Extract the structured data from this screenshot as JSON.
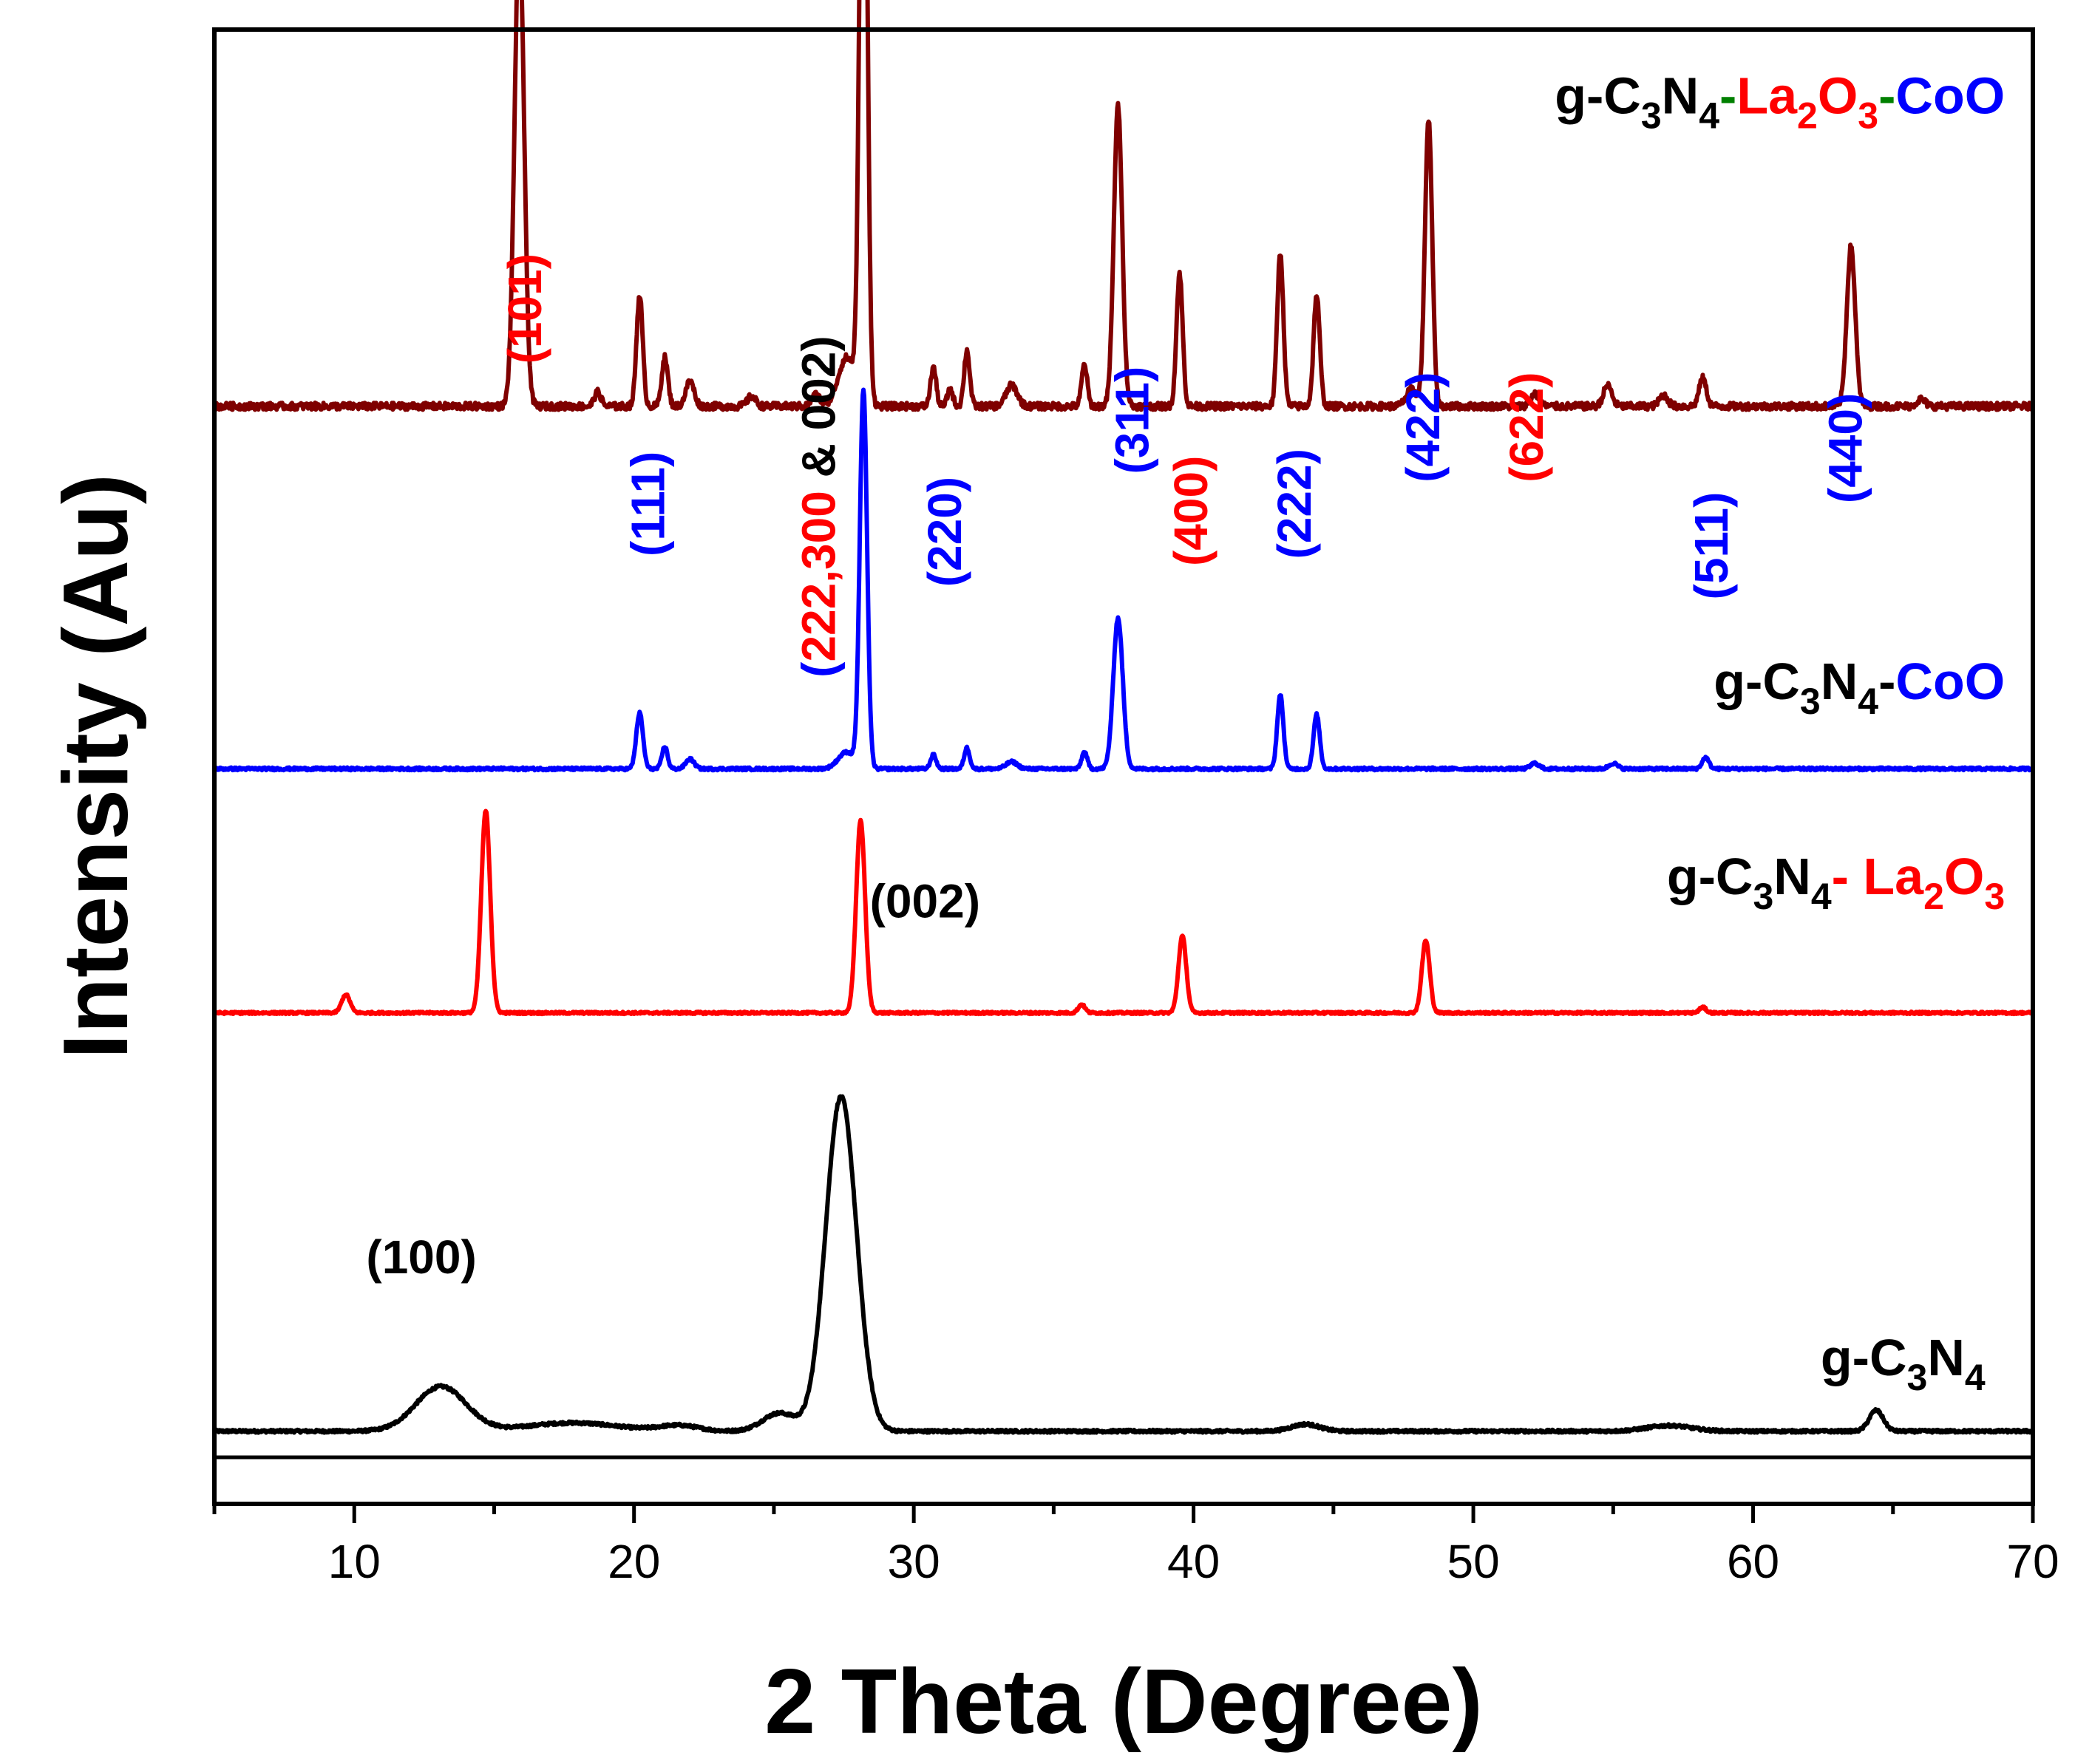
{
  "chart_data": {
    "type": "line",
    "title": "",
    "xlabel": "2 Theta (Degree)",
    "ylabel": "Intensity (Au)",
    "xlim": [
      5,
      70
    ],
    "ylim": [
      0,
      100
    ],
    "x_ticks": [
      10,
      20,
      30,
      40,
      50,
      60,
      70
    ],
    "x_tick_labels": [
      "10",
      "20",
      "30",
      "40",
      "50",
      "60",
      "70"
    ],
    "colors": {
      "gcn": "#000000",
      "la": "#ff0000",
      "co": "#0000ff",
      "ternary": "#7f0000",
      "green": "#008000"
    },
    "series": [
      {
        "key": "gcn",
        "name": "g-C3N4",
        "color": "#000000",
        "baseline": 1.5,
        "width": 0.1,
        "features": [
          {
            "x": 13.1,
            "h": 3.2,
            "w": 0.9
          },
          {
            "x": 17.8,
            "h": 0.6,
            "w": 1.6
          },
          {
            "x": 21.6,
            "h": 0.4,
            "w": 0.7
          },
          {
            "x": 25.2,
            "h": 1.3,
            "w": 0.6
          },
          {
            "x": 27.4,
            "h": 24.0,
            "w": 0.55
          },
          {
            "x": 44.0,
            "h": 0.5,
            "w": 0.5
          },
          {
            "x": 57.0,
            "h": 0.4,
            "w": 0.8
          },
          {
            "x": 64.4,
            "h": 1.5,
            "w": 0.25
          }
        ]
      },
      {
        "key": "la",
        "name": "g-C3N4- La2O3",
        "color": "#ff0000",
        "baseline": 31.5,
        "width": 0.08,
        "features": [
          {
            "x": 9.7,
            "h": 1.3,
            "w": 0.15
          },
          {
            "x": 14.7,
            "h": 14.5,
            "w": 0.16
          },
          {
            "x": 28.1,
            "h": 13.8,
            "w": 0.16
          },
          {
            "x": 36.0,
            "h": 0.6,
            "w": 0.12
          },
          {
            "x": 39.6,
            "h": 5.5,
            "w": 0.14
          },
          {
            "x": 48.3,
            "h": 5.2,
            "w": 0.14
          },
          {
            "x": 58.2,
            "h": 0.4,
            "w": 0.12
          }
        ]
      },
      {
        "key": "co",
        "name": "g-C3N4-CoO",
        "color": "#0000ff",
        "baseline": 49.0,
        "width": 0.1,
        "features": [
          {
            "x": 20.2,
            "h": 4.0,
            "w": 0.12
          },
          {
            "x": 21.1,
            "h": 1.6,
            "w": 0.1
          },
          {
            "x": 22.0,
            "h": 0.7,
            "w": 0.15
          },
          {
            "x": 27.6,
            "h": 1.2,
            "w": 0.3
          },
          {
            "x": 28.2,
            "h": 27.0,
            "w": 0.13
          },
          {
            "x": 30.7,
            "h": 1.0,
            "w": 0.1
          },
          {
            "x": 31.9,
            "h": 1.5,
            "w": 0.1
          },
          {
            "x": 33.5,
            "h": 0.5,
            "w": 0.2
          },
          {
            "x": 36.1,
            "h": 1.2,
            "w": 0.1
          },
          {
            "x": 37.3,
            "h": 10.8,
            "w": 0.17
          },
          {
            "x": 43.1,
            "h": 5.3,
            "w": 0.11
          },
          {
            "x": 44.4,
            "h": 3.9,
            "w": 0.11
          },
          {
            "x": 52.2,
            "h": 0.4,
            "w": 0.15
          },
          {
            "x": 55.0,
            "h": 0.4,
            "w": 0.15
          },
          {
            "x": 58.3,
            "h": 0.8,
            "w": 0.12
          }
        ]
      },
      {
        "key": "ternary",
        "name": "g-C3N4-La2O3-CoO",
        "color": "#7f0000",
        "baseline": 75.0,
        "width": 0.25,
        "features": [
          {
            "x": 15.9,
            "h": 34.0,
            "w": 0.17
          },
          {
            "x": 18.7,
            "h": 1.0,
            "w": 0.12
          },
          {
            "x": 20.2,
            "h": 8.0,
            "w": 0.11
          },
          {
            "x": 21.1,
            "h": 3.5,
            "w": 0.11
          },
          {
            "x": 22.0,
            "h": 1.8,
            "w": 0.15
          },
          {
            "x": 24.2,
            "h": 0.7,
            "w": 0.15
          },
          {
            "x": 26.5,
            "h": 0.8,
            "w": 0.15
          },
          {
            "x": 27.6,
            "h": 3.5,
            "w": 0.3
          },
          {
            "x": 28.2,
            "h": 55.0,
            "w": 0.13
          },
          {
            "x": 30.7,
            "h": 2.8,
            "w": 0.1
          },
          {
            "x": 31.3,
            "h": 1.2,
            "w": 0.1
          },
          {
            "x": 31.9,
            "h": 4.0,
            "w": 0.1
          },
          {
            "x": 33.5,
            "h": 1.5,
            "w": 0.2
          },
          {
            "x": 36.1,
            "h": 3.0,
            "w": 0.1
          },
          {
            "x": 37.3,
            "h": 21.5,
            "w": 0.15
          },
          {
            "x": 39.5,
            "h": 9.5,
            "w": 0.11
          },
          {
            "x": 43.1,
            "h": 11.0,
            "w": 0.11
          },
          {
            "x": 44.4,
            "h": 8.0,
            "w": 0.11
          },
          {
            "x": 47.8,
            "h": 1.2,
            "w": 0.2
          },
          {
            "x": 48.4,
            "h": 20.5,
            "w": 0.13
          },
          {
            "x": 52.2,
            "h": 0.9,
            "w": 0.15
          },
          {
            "x": 54.8,
            "h": 1.5,
            "w": 0.15
          },
          {
            "x": 56.8,
            "h": 0.8,
            "w": 0.15
          },
          {
            "x": 58.2,
            "h": 2.0,
            "w": 0.13
          },
          {
            "x": 63.5,
            "h": 11.5,
            "w": 0.15
          },
          {
            "x": 66.0,
            "h": 0.5,
            "w": 0.15
          }
        ]
      }
    ],
    "annotations": [
      {
        "text": "(101)",
        "color": "#ff0000",
        "x": 16.1,
        "y": 82.0,
        "rotate": -90
      },
      {
        "text": "(111)",
        "color": "#0000ff",
        "x": 20.5,
        "y": 68.0,
        "rotate": -90
      },
      {
        "text": "(220)",
        "color": "#0000ff",
        "x": 31.1,
        "y": 66.0,
        "rotate": -90
      },
      {
        "text": "(311)",
        "color": "#0000ff",
        "x": 37.8,
        "y": 74.0,
        "rotate": -90
      },
      {
        "text": "(400)",
        "color": "#ff0000",
        "x": 39.9,
        "y": 67.5,
        "rotate": -90
      },
      {
        "text": "(222)",
        "color": "#0000ff",
        "x": 43.6,
        "y": 68.0,
        "rotate": -90
      },
      {
        "text": "(422)",
        "color": "#0000ff",
        "x": 48.2,
        "y": 73.5,
        "rotate": -90
      },
      {
        "text": "(622)",
        "color": "#ff0000",
        "x": 51.9,
        "y": 73.5,
        "rotate": -90
      },
      {
        "text": "(511)",
        "color": "#0000ff",
        "x": 58.5,
        "y": 65.0,
        "rotate": -90
      },
      {
        "text": "(440)",
        "color": "#0000ff",
        "x": 63.3,
        "y": 72.0,
        "rotate": -90
      },
      {
        "text": "(100)",
        "color": "#000000",
        "x": 12.4,
        "y": 14.0,
        "rotate": 0
      },
      {
        "text": "(002)",
        "color": "#000000",
        "x": 30.4,
        "y": 39.5,
        "rotate": 0
      }
    ],
    "composite_annotation": {
      "x": 26.6,
      "y": 67.8,
      "rotate": -90,
      "parts": [
        {
          "text": "(",
          "color": "#0000ff"
        },
        {
          "text": "222,300",
          "color": "#ff0000"
        },
        {
          "text": " & 002)",
          "color": "#000000"
        }
      ]
    },
    "legend_labels": [
      {
        "key": "ternary",
        "anchor_x": 69.0,
        "y": 96.0,
        "parts": [
          {
            "text": "g-C",
            "color": "#000000"
          },
          {
            "text": "3",
            "color": "#000000",
            "sub": true
          },
          {
            "text": "N",
            "color": "#000000"
          },
          {
            "text": "4",
            "color": "#000000",
            "sub": true
          },
          {
            "text": "-",
            "color": "#008000"
          },
          {
            "text": "La",
            "color": "#ff0000"
          },
          {
            "text": "2",
            "color": "#ff0000",
            "sub": true
          },
          {
            "text": "O",
            "color": "#ff0000"
          },
          {
            "text": "3",
            "color": "#ff0000",
            "sub": true
          },
          {
            "text": "-",
            "color": "#008000"
          },
          {
            "text": "CoO",
            "color": "#0000ff"
          }
        ]
      },
      {
        "key": "co",
        "anchor_x": 69.0,
        "y": 54.0,
        "parts": [
          {
            "text": "g-C",
            "color": "#000000"
          },
          {
            "text": "3",
            "color": "#000000",
            "sub": true
          },
          {
            "text": "N",
            "color": "#000000"
          },
          {
            "text": "4",
            "color": "#000000",
            "sub": true
          },
          {
            "text": "-",
            "color": "#000000"
          },
          {
            "text": "CoO",
            "color": "#0000ff"
          }
        ]
      },
      {
        "key": "la",
        "anchor_x": 69.0,
        "y": 40.0,
        "parts": [
          {
            "text": "g-C",
            "color": "#000000"
          },
          {
            "text": "3",
            "color": "#000000",
            "sub": true
          },
          {
            "text": "N",
            "color": "#000000"
          },
          {
            "text": "4",
            "color": "#000000",
            "sub": true
          },
          {
            "text": "- ",
            "color": "#ff0000"
          },
          {
            "text": "La",
            "color": "#ff0000"
          },
          {
            "text": "2",
            "color": "#ff0000",
            "sub": true
          },
          {
            "text": "O",
            "color": "#ff0000"
          },
          {
            "text": "3",
            "color": "#ff0000",
            "sub": true
          }
        ]
      },
      {
        "key": "gcn",
        "anchor_x": 68.3,
        "y": 5.5,
        "parts": [
          {
            "text": "g-C",
            "color": "#000000"
          },
          {
            "text": "3",
            "color": "#000000",
            "sub": true
          },
          {
            "text": "N",
            "color": "#000000"
          },
          {
            "text": "4",
            "color": "#000000",
            "sub": true
          }
        ]
      }
    ]
  }
}
